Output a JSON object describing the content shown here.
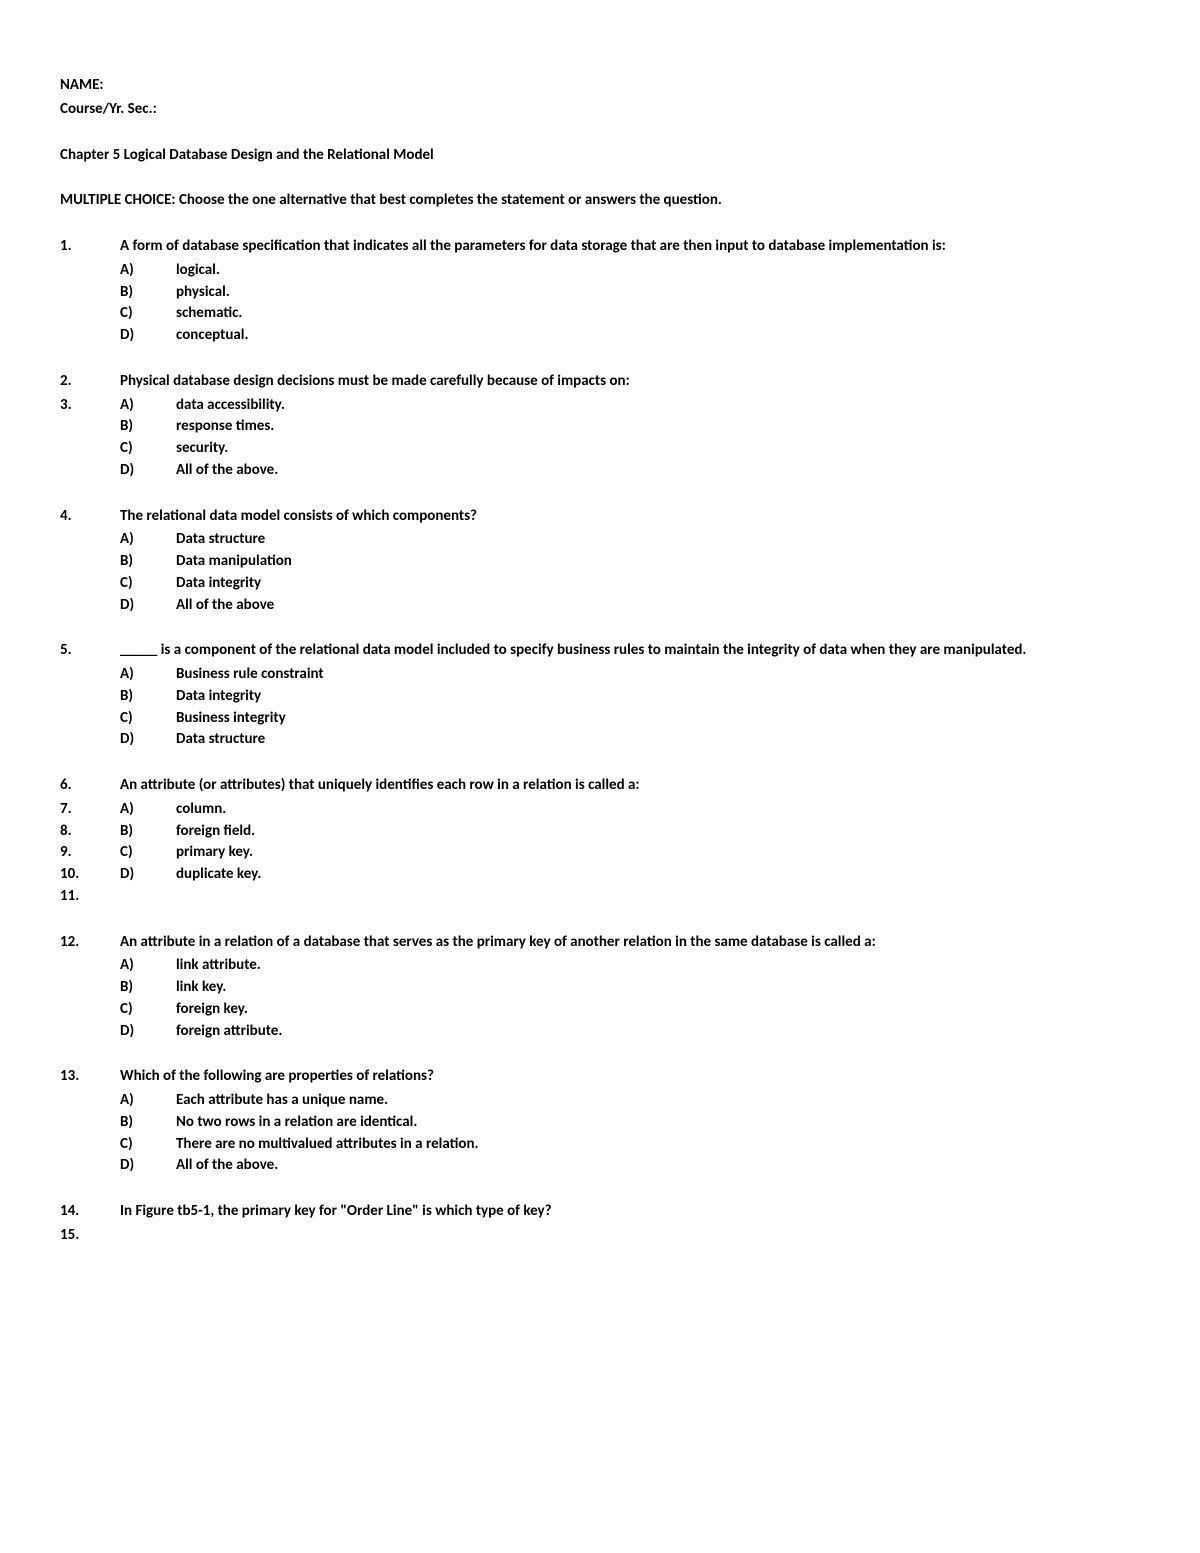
{
  "header": {
    "name_label": "NAME:",
    "course_label": "Course/Yr. Sec.:"
  },
  "chapter_title": "Chapter 5 Logical Database Design and the Relational Model",
  "instructions": "MULTIPLE CHOICE: Choose the one alternative that best completes the statement or answers the question.",
  "questions": [
    {
      "numbers": [
        "1."
      ],
      "text": "A form of database specification that indicates all the parameters for data storage that are then input to database implementation is:",
      "options": [
        {
          "num": "",
          "letter": "A)",
          "text": "logical."
        },
        {
          "num": "",
          "letter": "B)",
          "text": "physical."
        },
        {
          "num": "",
          "letter": "C)",
          "text": "schematic."
        },
        {
          "num": "",
          "letter": "D)",
          "text": "conceptual."
        }
      ],
      "trailing_numbers": []
    },
    {
      "numbers": [
        "2."
      ],
      "text": "Physical database design decisions must be made carefully because of impacts on:",
      "options": [
        {
          "num": "3.",
          "letter": "A)",
          "text": "data accessibility."
        },
        {
          "num": "",
          "letter": "B)",
          "text": "response times."
        },
        {
          "num": "",
          "letter": "C)",
          "text": "security."
        },
        {
          "num": "",
          "letter": "D)",
          "text": "All of the above."
        }
      ],
      "trailing_numbers": []
    },
    {
      "numbers": [
        "4."
      ],
      "text": "The relational data model consists of which components?",
      "options": [
        {
          "num": "",
          "letter": "A)",
          "text": "Data structure"
        },
        {
          "num": "",
          "letter": "B)",
          "text": "Data manipulation"
        },
        {
          "num": "",
          "letter": "C)",
          "text": "Data integrity"
        },
        {
          "num": "",
          "letter": "D)",
          "text": "All of the above"
        }
      ],
      "trailing_numbers": []
    },
    {
      "numbers": [
        "5."
      ],
      "text": "_____ is a component of the relational data model included to specify business rules to maintain the integrity of data when they are manipulated.",
      "options": [
        {
          "num": "",
          "letter": "A)",
          "text": "Business rule constraint"
        },
        {
          "num": "",
          "letter": "B)",
          "text": "Data integrity"
        },
        {
          "num": "",
          "letter": "C)",
          "text": "Business integrity"
        },
        {
          "num": "",
          "letter": "D)",
          "text": "Data structure"
        }
      ],
      "trailing_numbers": []
    },
    {
      "numbers": [
        "6."
      ],
      "text": "An attribute (or attributes) that uniquely identifies each row in a relation is called a:",
      "options": [
        {
          "num": "7.",
          "letter": "A)",
          "text": "column."
        },
        {
          "num": "8.",
          "letter": "B)",
          "text": "foreign field."
        },
        {
          "num": "9.",
          "letter": "C)",
          "text": "primary key."
        },
        {
          "num": "10.",
          "letter": "D)",
          "text": "duplicate key."
        }
      ],
      "trailing_numbers": [
        "11."
      ]
    },
    {
      "numbers": [
        "12."
      ],
      "text": "An attribute in a relation of a database that serves as the primary key of another relation in the same database is called a:",
      "options": [
        {
          "num": "",
          "letter": "A)",
          "text": "link attribute."
        },
        {
          "num": "",
          "letter": "B)",
          "text": "link key."
        },
        {
          "num": "",
          "letter": "C)",
          "text": "foreign key."
        },
        {
          "num": "",
          "letter": "D)",
          "text": "foreign attribute."
        }
      ],
      "trailing_numbers": []
    },
    {
      "numbers": [
        "13."
      ],
      "text": "Which of the following are properties of relations?",
      "options": [
        {
          "num": "",
          "letter": "A)",
          "text": "Each attribute has a unique name."
        },
        {
          "num": "",
          "letter": "B)",
          "text": "No two rows in a relation are identical."
        },
        {
          "num": "",
          "letter": "C)",
          "text": "There are no multivalued attributes in a relation."
        },
        {
          "num": "",
          "letter": "D)",
          "text": "All of the above."
        }
      ],
      "trailing_numbers": []
    },
    {
      "numbers": [
        "14."
      ],
      "text": "In Figure tb5-1, the primary key for \"Order Line\" is which type of key?",
      "options": [],
      "trailing_numbers": [
        "15."
      ]
    }
  ]
}
